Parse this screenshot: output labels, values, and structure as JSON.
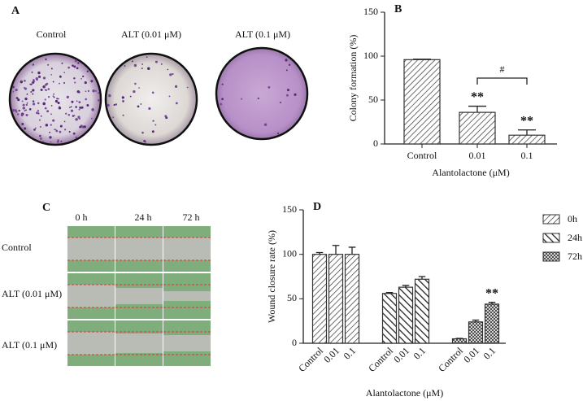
{
  "panel_a": {
    "label": "A",
    "captions": [
      "Control",
      "ALT (0.01 μM)",
      "ALT (0.1 μM)"
    ]
  },
  "panel_c": {
    "label": "C",
    "columns": [
      "0 h",
      "24 h",
      "72 h"
    ],
    "rows": [
      "Control",
      "ALT (0.01 μM)",
      "ALT (0.1 μM)"
    ]
  },
  "chart_data": [
    {
      "type": "bar",
      "panel_label": "B",
      "ylabel": "Colony formation (%)",
      "xlabel": "Alantolactone (μM)",
      "categories": [
        "Control",
        "0.01",
        "0.1"
      ],
      "values": [
        96,
        36,
        10
      ],
      "errors": [
        0.5,
        7,
        6
      ],
      "significance": [
        null,
        "**",
        "**"
      ],
      "comparison": "#",
      "color": "#333333",
      "ylim": [
        0,
        150
      ],
      "yticks": [
        0,
        50,
        100,
        150
      ]
    },
    {
      "type": "grouped_bar",
      "panel_label": "D",
      "ylabel": "Wound closure rate (%)",
      "xlabel": "Alantolactone (μM)",
      "categories": [
        "Control",
        "0.01",
        "0.1"
      ],
      "series": [
        {
          "name": "0h",
          "color": "#333333",
          "values": [
            100,
            100,
            100
          ],
          "errors": [
            2,
            10,
            8
          ]
        },
        {
          "name": "24h",
          "color": "#333333",
          "values": [
            56,
            63,
            72
          ],
          "errors": [
            1,
            2,
            3
          ]
        },
        {
          "name": "72h",
          "color": "#333333",
          "values": [
            5,
            24,
            44
          ],
          "errors": [
            0.5,
            2,
            2
          ],
          "significance": [
            null,
            null,
            "**"
          ]
        }
      ],
      "ylim": [
        0,
        150
      ],
      "yticks": [
        0,
        50,
        100,
        150
      ],
      "legend": "right"
    }
  ]
}
